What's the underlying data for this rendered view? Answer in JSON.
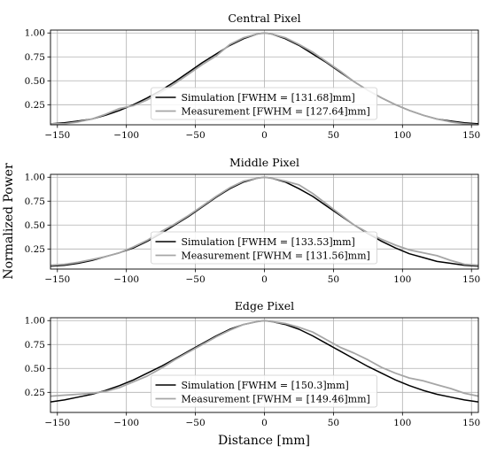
{
  "figure": {
    "ylabel": "Normalized Power",
    "xlabel": "Distance [mm]"
  },
  "chart_data": [
    {
      "type": "line",
      "title": "Central Pixel",
      "xlim": [
        -155,
        155
      ],
      "ylim": [
        0.04,
        1.03
      ],
      "xticks": [
        "−150",
        "−100",
        "−50",
        "0",
        "50",
        "100",
        "150"
      ],
      "yticks": [
        "1.00",
        "0.75",
        "0.50",
        "0.25"
      ],
      "grid": true,
      "legend_position": "lower center",
      "series": [
        {
          "name": "Simulation [FWHM = [131.68]mm]",
          "color": "#000000",
          "x": [
            -155,
            -145,
            -135,
            -125,
            -115,
            -105,
            -95,
            -85,
            -75,
            -65,
            -55,
            -45,
            -35,
            -25,
            -15,
            -5,
            0,
            5,
            15,
            25,
            35,
            45,
            55,
            65,
            75,
            85,
            95,
            105,
            115,
            125,
            135,
            145,
            155
          ],
          "y": [
            0.05,
            0.06,
            0.08,
            0.1,
            0.14,
            0.19,
            0.25,
            0.32,
            0.4,
            0.49,
            0.59,
            0.69,
            0.78,
            0.87,
            0.94,
            0.99,
            1.0,
            0.99,
            0.94,
            0.87,
            0.78,
            0.69,
            0.59,
            0.49,
            0.4,
            0.32,
            0.25,
            0.19,
            0.14,
            0.1,
            0.08,
            0.06,
            0.05
          ]
        },
        {
          "name": "Measurement [FWHM = [127.64]mm]",
          "color": "#a6a6a6",
          "x": [
            -155,
            -145,
            -135,
            -125,
            -115,
            -105,
            -95,
            -85,
            -75,
            -65,
            -55,
            -45,
            -35,
            -25,
            -15,
            -5,
            0,
            5,
            15,
            25,
            35,
            45,
            55,
            65,
            75,
            85,
            95,
            105,
            115,
            125,
            135,
            145,
            155
          ],
          "y": [
            0.05,
            0.05,
            0.07,
            0.1,
            0.15,
            0.21,
            0.24,
            0.3,
            0.38,
            0.47,
            0.57,
            0.67,
            0.76,
            0.88,
            0.95,
            0.99,
            1.0,
            0.99,
            0.95,
            0.88,
            0.8,
            0.7,
            0.6,
            0.49,
            0.4,
            0.32,
            0.25,
            0.19,
            0.14,
            0.1,
            0.07,
            0.05,
            0.04
          ]
        }
      ]
    },
    {
      "type": "line",
      "title": "Middle Pixel",
      "xlim": [
        -155,
        155
      ],
      "ylim": [
        0.04,
        1.03
      ],
      "xticks": [
        "−150",
        "−100",
        "−50",
        "0",
        "50",
        "100",
        "150"
      ],
      "yticks": [
        "1.00",
        "0.75",
        "0.50",
        "0.25"
      ],
      "grid": true,
      "legend_position": "lower center",
      "series": [
        {
          "name": "Simulation [FWHM = [133.53]mm]",
          "color": "#000000",
          "x": [
            -155,
            -145,
            -135,
            -125,
            -115,
            -105,
            -95,
            -85,
            -75,
            -65,
            -55,
            -45,
            -35,
            -25,
            -15,
            -5,
            0,
            5,
            15,
            25,
            35,
            45,
            55,
            65,
            75,
            85,
            95,
            105,
            115,
            125,
            135,
            145,
            155
          ],
          "y": [
            0.07,
            0.08,
            0.1,
            0.13,
            0.17,
            0.21,
            0.26,
            0.33,
            0.41,
            0.5,
            0.59,
            0.69,
            0.79,
            0.88,
            0.95,
            0.99,
            1.0,
            0.99,
            0.95,
            0.88,
            0.8,
            0.7,
            0.6,
            0.5,
            0.41,
            0.33,
            0.26,
            0.2,
            0.16,
            0.12,
            0.1,
            0.08,
            0.07
          ]
        },
        {
          "name": "Measurement [FWHM = [131.56]mm]",
          "color": "#a6a6a6",
          "x": [
            -155,
            -145,
            -135,
            -125,
            -115,
            -105,
            -95,
            -85,
            -75,
            -65,
            -55,
            -45,
            -35,
            -25,
            -15,
            -5,
            0,
            5,
            15,
            25,
            35,
            45,
            55,
            65,
            75,
            85,
            95,
            105,
            115,
            125,
            135,
            145,
            155
          ],
          "y": [
            0.08,
            0.09,
            0.11,
            0.14,
            0.17,
            0.21,
            0.27,
            0.34,
            0.43,
            0.51,
            0.6,
            0.7,
            0.8,
            0.89,
            0.96,
            0.99,
            1.0,
            0.99,
            0.96,
            0.92,
            0.83,
            0.72,
            0.61,
            0.5,
            0.42,
            0.35,
            0.29,
            0.24,
            0.21,
            0.18,
            0.13,
            0.09,
            0.08
          ]
        }
      ]
    },
    {
      "type": "line",
      "title": "Edge Pixel",
      "xlim": [
        -155,
        155
      ],
      "ylim": [
        0.04,
        1.03
      ],
      "xticks": [
        "−150",
        "−100",
        "−50",
        "0",
        "50",
        "100",
        "150"
      ],
      "yticks": [
        "1.00",
        "0.75",
        "0.50",
        "0.25"
      ],
      "grid": true,
      "legend_position": "lower center",
      "series": [
        {
          "name": "Simulation [FWHM = [150.3]mm]",
          "color": "#000000",
          "x": [
            -155,
            -145,
            -135,
            -125,
            -115,
            -105,
            -95,
            -85,
            -75,
            -65,
            -55,
            -45,
            -35,
            -25,
            -15,
            -5,
            0,
            5,
            15,
            25,
            35,
            45,
            55,
            65,
            75,
            85,
            95,
            105,
            115,
            125,
            135,
            145,
            155
          ],
          "y": [
            0.15,
            0.17,
            0.2,
            0.23,
            0.27,
            0.32,
            0.38,
            0.45,
            0.52,
            0.6,
            0.68,
            0.76,
            0.84,
            0.91,
            0.96,
            0.99,
            1.0,
            0.99,
            0.96,
            0.91,
            0.84,
            0.76,
            0.68,
            0.6,
            0.52,
            0.45,
            0.38,
            0.32,
            0.27,
            0.23,
            0.2,
            0.17,
            0.15
          ]
        },
        {
          "name": "Measurement [FWHM = [149.46]mm]",
          "color": "#a6a6a6",
          "x": [
            -155,
            -145,
            -135,
            -125,
            -115,
            -105,
            -95,
            -85,
            -75,
            -65,
            -55,
            -45,
            -35,
            -25,
            -15,
            -5,
            0,
            5,
            15,
            25,
            35,
            45,
            55,
            65,
            75,
            85,
            95,
            105,
            115,
            125,
            135,
            145,
            155
          ],
          "y": [
            0.21,
            0.22,
            0.23,
            0.24,
            0.26,
            0.3,
            0.36,
            0.42,
            0.5,
            0.59,
            0.67,
            0.75,
            0.83,
            0.9,
            0.96,
            0.99,
            1.0,
            0.99,
            0.97,
            0.93,
            0.88,
            0.8,
            0.72,
            0.66,
            0.59,
            0.51,
            0.45,
            0.4,
            0.37,
            0.33,
            0.29,
            0.24,
            0.21
          ]
        }
      ]
    }
  ]
}
